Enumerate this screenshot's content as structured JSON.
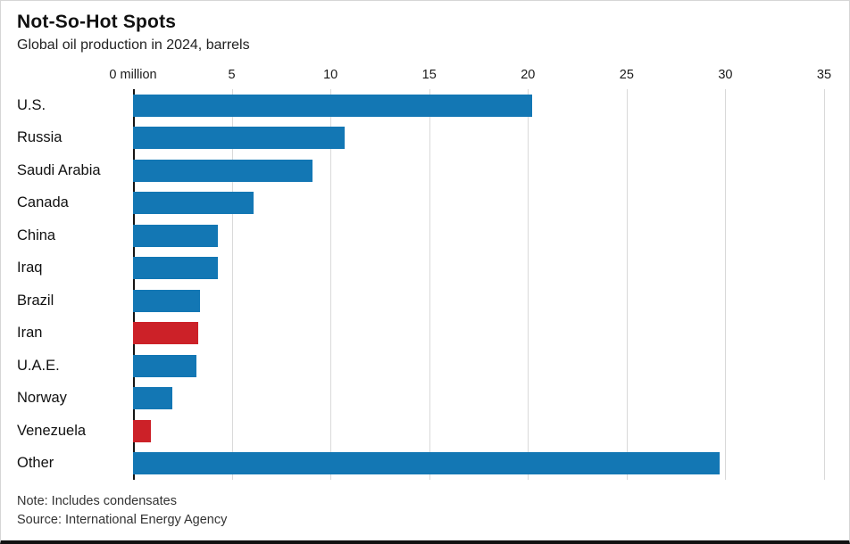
{
  "chart": {
    "title": "Not-So-Hot Spots",
    "subtitle": "Global oil production in 2024, barrels",
    "note": "Note: Includes condensates",
    "source": "Source: International Energy Agency"
  },
  "chart_data": {
    "type": "bar",
    "orientation": "horizontal",
    "title": "Not-So-Hot Spots",
    "subtitle": "Global oil production in 2024, barrels",
    "categories": [
      "U.S.",
      "Russia",
      "Saudi Arabia",
      "Canada",
      "China",
      "Iraq",
      "Brazil",
      "Iran",
      "U.A.E.",
      "Norway",
      "Venezuela",
      "Other"
    ],
    "values": [
      20.2,
      10.7,
      9.1,
      6.1,
      4.3,
      4.3,
      3.4,
      3.3,
      3.2,
      2.0,
      0.9,
      29.7
    ],
    "bar_colors": [
      "blue",
      "blue",
      "blue",
      "blue",
      "blue",
      "blue",
      "blue",
      "red",
      "blue",
      "blue",
      "red",
      "blue"
    ],
    "palette": {
      "blue": "#1377b4",
      "red": "#cc2128"
    },
    "xlabel": "million barrels",
    "ylabel": "",
    "xlim": [
      0,
      35
    ],
    "ticks": [
      0,
      5,
      10,
      15,
      20,
      25,
      30,
      35
    ],
    "tick_labels": [
      "0 million",
      "5",
      "10",
      "15",
      "20",
      "25",
      "30",
      "35"
    ],
    "grid": true,
    "legend": false,
    "axis_position": "top"
  }
}
